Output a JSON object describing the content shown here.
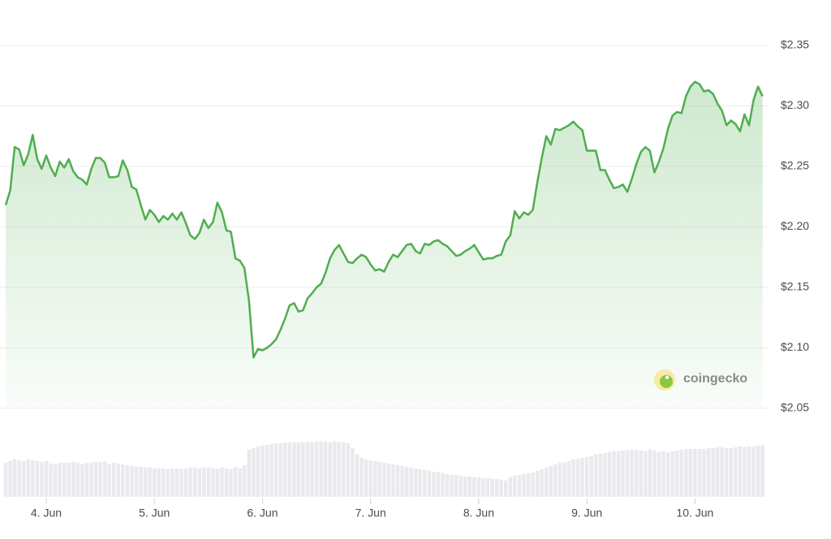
{
  "chart_data": {
    "type": "line",
    "watermark": "coingecko",
    "grid": true,
    "area": true,
    "x": [
      3.625,
      3.667,
      3.708,
      3.75,
      3.792,
      3.833,
      3.875,
      3.917,
      3.958,
      4.0,
      4.042,
      4.083,
      4.125,
      4.167,
      4.208,
      4.25,
      4.292,
      4.333,
      4.375,
      4.417,
      4.458,
      4.5,
      4.542,
      4.583,
      4.625,
      4.667,
      4.708,
      4.75,
      4.792,
      4.833,
      4.875,
      4.917,
      4.958,
      5.0,
      5.042,
      5.083,
      5.125,
      5.167,
      5.208,
      5.25,
      5.292,
      5.333,
      5.375,
      5.417,
      5.458,
      5.5,
      5.542,
      5.583,
      5.625,
      5.667,
      5.708,
      5.75,
      5.792,
      5.833,
      5.875,
      5.917,
      5.958,
      6.0,
      6.042,
      6.083,
      6.125,
      6.167,
      6.208,
      6.25,
      6.292,
      6.333,
      6.375,
      6.417,
      6.458,
      6.5,
      6.542,
      6.583,
      6.625,
      6.667,
      6.708,
      6.75,
      6.792,
      6.833,
      6.875,
      6.917,
      6.958,
      7.0,
      7.042,
      7.083,
      7.125,
      7.167,
      7.208,
      7.25,
      7.292,
      7.333,
      7.375,
      7.417,
      7.458,
      7.5,
      7.542,
      7.583,
      7.625,
      7.667,
      7.708,
      7.75,
      7.792,
      7.833,
      7.875,
      7.917,
      7.958,
      8.0,
      8.042,
      8.083,
      8.125,
      8.167,
      8.208,
      8.25,
      8.292,
      8.333,
      8.375,
      8.417,
      8.458,
      8.5,
      8.542,
      8.583,
      8.625,
      8.667,
      8.708,
      8.75,
      8.792,
      8.833,
      8.875,
      8.917,
      8.958,
      9.0,
      9.042,
      9.083,
      9.125,
      9.167,
      9.208,
      9.25,
      9.292,
      9.333,
      9.375,
      9.417,
      9.458,
      9.5,
      9.542,
      9.583,
      9.625,
      9.667,
      9.708,
      9.75,
      9.792,
      9.833,
      9.875,
      9.917,
      9.958,
      10.0,
      10.042,
      10.083,
      10.125,
      10.167,
      10.208,
      10.25,
      10.292,
      10.333,
      10.375,
      10.417,
      10.458,
      10.5,
      10.542,
      10.583,
      10.625
    ],
    "series": [
      {
        "color": "#4fae4f",
        "values": [
          2.218,
          2.23,
          2.266,
          2.264,
          2.251,
          2.26,
          2.276,
          2.256,
          2.248,
          2.259,
          2.249,
          2.242,
          2.254,
          2.249,
          2.256,
          2.246,
          2.241,
          2.239,
          2.235,
          2.248,
          2.257,
          2.257,
          2.253,
          2.241,
          2.241,
          2.242,
          2.255,
          2.247,
          2.233,
          2.231,
          2.218,
          2.206,
          2.214,
          2.21,
          2.204,
          2.209,
          2.206,
          2.211,
          2.206,
          2.212,
          2.203,
          2.193,
          2.19,
          2.195,
          2.206,
          2.199,
          2.204,
          2.22,
          2.212,
          2.197,
          2.196,
          2.174,
          2.172,
          2.166,
          2.139,
          2.092,
          2.099,
          2.098,
          2.1,
          2.103,
          2.107,
          2.115,
          2.124,
          2.135,
          2.137,
          2.13,
          2.131,
          2.141,
          2.145,
          2.15,
          2.153,
          2.162,
          2.174,
          2.181,
          2.185,
          2.178,
          2.171,
          2.17,
          2.174,
          2.177,
          2.175,
          2.169,
          2.164,
          2.165,
          2.163,
          2.171,
          2.177,
          2.175,
          2.18,
          2.185,
          2.186,
          2.18,
          2.178,
          2.186,
          2.185,
          2.188,
          2.189,
          2.186,
          2.184,
          2.18,
          2.176,
          2.177,
          2.18,
          2.182,
          2.185,
          2.179,
          2.173,
          2.174,
          2.174,
          2.176,
          2.177,
          2.188,
          2.193,
          2.213,
          2.207,
          2.212,
          2.21,
          2.214,
          2.237,
          2.257,
          2.275,
          2.268,
          2.281,
          2.28,
          2.282,
          2.284,
          2.287,
          2.283,
          2.28,
          2.263,
          2.263,
          2.263,
          2.247,
          2.247,
          2.239,
          2.232,
          2.233,
          2.235,
          2.229,
          2.24,
          2.252,
          2.262,
          2.266,
          2.263,
          2.245,
          2.254,
          2.265,
          2.281,
          2.292,
          2.295,
          2.294,
          2.308,
          2.316,
          2.32,
          2.318,
          2.312,
          2.313,
          2.31,
          2.302,
          2.296,
          2.284,
          2.288,
          2.285,
          2.279,
          2.293,
          2.284,
          2.305,
          2.316,
          2.308
        ]
      },
      {
        "type": "bar",
        "axis": "y2",
        "color": "#e9e9ee",
        "values": [
          42,
          44,
          46,
          45,
          44,
          46,
          45,
          44,
          43,
          44,
          41,
          40,
          42,
          42,
          42,
          43,
          42,
          40,
          42,
          42,
          43,
          43,
          44,
          40,
          42,
          41,
          40,
          39,
          38,
          37,
          37,
          36,
          36,
          35,
          35,
          35,
          34,
          35,
          35,
          34,
          35,
          36,
          36,
          35,
          36,
          36,
          35,
          34,
          36,
          35,
          34,
          37,
          35,
          39,
          58,
          60,
          62,
          63,
          64,
          65,
          66,
          66,
          67,
          67,
          67,
          67,
          67,
          67,
          67,
          68,
          68,
          68,
          67,
          68,
          67,
          67,
          66,
          60,
          52,
          48,
          46,
          45,
          44,
          43,
          42,
          41,
          40,
          39,
          38,
          37,
          36,
          35,
          34,
          33,
          32,
          31,
          30,
          29,
          28,
          27,
          27,
          26,
          25,
          25,
          24,
          24,
          23,
          23,
          22,
          22,
          21,
          20,
          24,
          26,
          27,
          28,
          29,
          30,
          32,
          34,
          36,
          38,
          40,
          42,
          42,
          44,
          46,
          47,
          48,
          49,
          50,
          52,
          53,
          54,
          55,
          56,
          56,
          57,
          57,
          58,
          58,
          57,
          56,
          58,
          57,
          55,
          56,
          55,
          56,
          57,
          58,
          59,
          59,
          59,
          59,
          59,
          60,
          60,
          61,
          61,
          60,
          60,
          61,
          62,
          61,
          62,
          62,
          63,
          63
        ]
      }
    ],
    "xlim": [
      3.61,
      10.65
    ],
    "xticks": [
      {
        "value": 4,
        "label": "4. Jun"
      },
      {
        "value": 5,
        "label": "5. Jun"
      },
      {
        "value": 6,
        "label": "6. Jun"
      },
      {
        "value": 7,
        "label": "7. Jun"
      },
      {
        "value": 8,
        "label": "8. Jun"
      },
      {
        "value": 9,
        "label": "9. Jun"
      },
      {
        "value": 10,
        "label": "10. Jun"
      }
    ],
    "ylim": [
      2.05,
      2.35
    ],
    "yticks": [
      {
        "value": 2.05,
        "label": "$2.05"
      },
      {
        "value": 2.1,
        "label": "$2.10"
      },
      {
        "value": 2.15,
        "label": "$2.15"
      },
      {
        "value": 2.2,
        "label": "$2.20"
      },
      {
        "value": 2.25,
        "label": "$2.25"
      },
      {
        "value": 2.3,
        "label": "$2.30"
      },
      {
        "value": 2.35,
        "label": "$2.35"
      }
    ],
    "y2lim": [
      0,
      70
    ]
  }
}
